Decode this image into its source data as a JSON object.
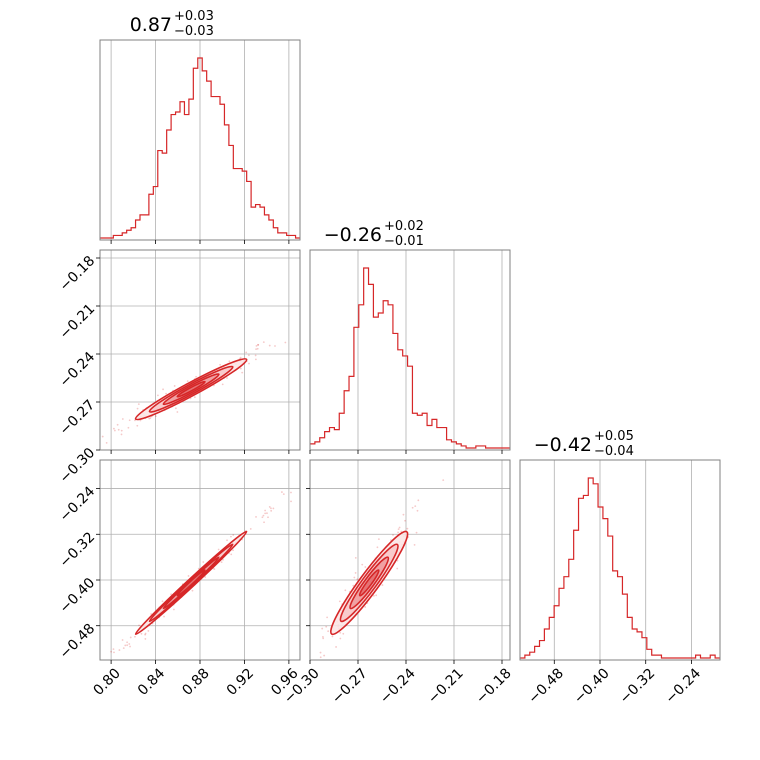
{
  "chart_data": {
    "type": "corner",
    "color": "#d62728",
    "fill_light": "#f7c6c7",
    "grid": true,
    "parameters": [
      {
        "title": {
          "value": "0.87",
          "plus": "+0.03",
          "minus": "−0.03"
        },
        "range": [
          0.79,
          0.97
        ],
        "ticks": [
          0.8,
          0.84,
          0.88,
          0.92,
          0.96
        ],
        "tick_labels": [
          "0.80",
          "0.84",
          "0.88",
          "0.92",
          "0.96"
        ],
        "hist": {
          "x_start": 0.79,
          "x_end": 0.97,
          "counts": [
            0,
            0,
            0,
            1,
            1,
            2,
            3,
            4,
            7,
            9,
            9,
            17,
            20,
            34,
            33,
            42,
            48,
            49,
            53,
            48,
            54,
            66,
            70,
            65,
            61,
            55,
            55,
            52,
            44,
            36,
            27,
            27,
            26,
            22,
            12,
            13,
            12,
            9,
            7,
            4,
            2,
            2,
            1,
            1,
            0
          ]
        }
      },
      {
        "title": {
          "value": "−0.26",
          "plus": "+0.02",
          "minus": "−0.01"
        },
        "range": [
          -0.3,
          -0.175
        ],
        "ticks": [
          -0.3,
          -0.27,
          -0.24,
          -0.21,
          -0.18
        ],
        "tick_labels": [
          "−0.30",
          "−0.27",
          "−0.24",
          "−0.21",
          "−0.18"
        ],
        "hist": {
          "x_start": -0.3,
          "x_end": -0.175,
          "counts": [
            2,
            3,
            5,
            8,
            10,
            9,
            17,
            28,
            35,
            59,
            70,
            88,
            80,
            64,
            66,
            72,
            70,
            56,
            48,
            45,
            40,
            17,
            16,
            17,
            11,
            14,
            10,
            10,
            4,
            3,
            2,
            1,
            0,
            0,
            1,
            1,
            0,
            0,
            0,
            0,
            0
          ]
        }
      },
      {
        "title": {
          "value": "−0.42",
          "plus": "+0.05",
          "minus": "−0.04"
        },
        "range": [
          -0.54,
          -0.19
        ],
        "ticks": [
          -0.48,
          -0.4,
          -0.32,
          -0.24
        ],
        "tick_labels": [
          "−0.48",
          "−0.40",
          "−0.32",
          "−0.24"
        ],
        "hist": {
          "x_start": -0.54,
          "x_end": -0.19,
          "counts": [
            0,
            1,
            2,
            4,
            6,
            10,
            14,
            18,
            24,
            28,
            34,
            44,
            55,
            56,
            62,
            60,
            52,
            48,
            42,
            30,
            28,
            22,
            14,
            10,
            9,
            7,
            3,
            1,
            1,
            0,
            0,
            0,
            0,
            0,
            0,
            0,
            1,
            0,
            0,
            1,
            0
          ]
        }
      }
    ],
    "pairs": [
      {
        "x": 0,
        "y": 1,
        "center": [
          0.872,
          -0.262
        ],
        "sd": [
          0.025,
          0.0095
        ],
        "rho": 0.97
      },
      {
        "x": 0,
        "y": 2,
        "center": [
          0.872,
          -0.405
        ],
        "sd": [
          0.025,
          0.045
        ],
        "rho": 0.995
      },
      {
        "x": 1,
        "y": 2,
        "center": [
          -0.263,
          -0.405
        ],
        "sd": [
          0.012,
          0.045
        ],
        "rho": 0.95
      }
    ]
  }
}
